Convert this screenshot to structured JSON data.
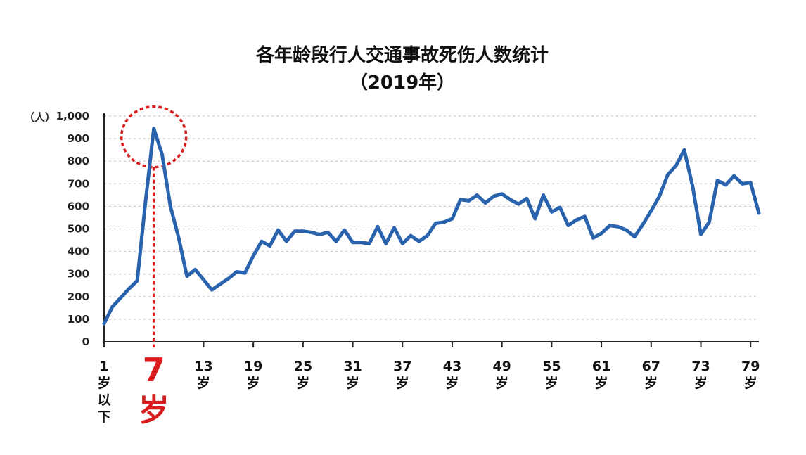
{
  "chart_data": {
    "type": "line",
    "title": "各年龄段行人交通事故死伤人数统计",
    "subtitle": "（2019年）",
    "ylabel": "（人）",
    "ylim": [
      0,
      1000
    ],
    "y_ticks": [
      0,
      100,
      200,
      300,
      400,
      500,
      600,
      700,
      800,
      900,
      1000
    ],
    "y_tick_labels": [
      "0",
      "100",
      "200",
      "300",
      "400",
      "500",
      "600",
      "700",
      "800",
      "900",
      "1,000"
    ],
    "x_ticks": [
      1,
      13,
      19,
      25,
      31,
      37,
      43,
      49,
      55,
      61,
      67,
      73,
      79
    ],
    "x_tick_labels": [
      {
        "num": "1",
        "unit": "岁以下"
      },
      {
        "num": "13",
        "unit": "岁"
      },
      {
        "num": "19",
        "unit": "岁"
      },
      {
        "num": "25",
        "unit": "岁"
      },
      {
        "num": "31",
        "unit": "岁"
      },
      {
        "num": "37",
        "unit": "岁"
      },
      {
        "num": "43",
        "unit": "岁"
      },
      {
        "num": "49",
        "unit": "岁"
      },
      {
        "num": "55",
        "unit": "岁"
      },
      {
        "num": "61",
        "unit": "岁"
      },
      {
        "num": "67",
        "unit": "岁"
      },
      {
        "num": "73",
        "unit": "岁"
      },
      {
        "num": "79",
        "unit": "岁"
      }
    ],
    "grid": true,
    "highlight": {
      "age": 7,
      "num": "7",
      "unit": "岁",
      "color": "#d81e1e"
    },
    "series": [
      {
        "color": "#2a63ad",
        "x": [
          1,
          2,
          3,
          4,
          5,
          6,
          7,
          8,
          9,
          10,
          11,
          12,
          13,
          14,
          15,
          16,
          17,
          18,
          19,
          20,
          21,
          22,
          23,
          24,
          25,
          26,
          27,
          28,
          29,
          30,
          31,
          32,
          33,
          34,
          35,
          36,
          37,
          38,
          39,
          40,
          41,
          42,
          43,
          44,
          45,
          46,
          47,
          48,
          49,
          50,
          51,
          52,
          53,
          54,
          55,
          56,
          57,
          58,
          59,
          60,
          61,
          62,
          63,
          64,
          65,
          66,
          67,
          68,
          69,
          70,
          71,
          72,
          73,
          74,
          75,
          76,
          77,
          78,
          79,
          80
        ],
        "y": [
          80,
          155,
          195,
          235,
          270,
          620,
          945,
          830,
          600,
          460,
          290,
          320,
          275,
          230,
          255,
          280,
          310,
          305,
          380,
          445,
          425,
          495,
          445,
          490,
          490,
          485,
          475,
          485,
          445,
          495,
          440,
          440,
          435,
          510,
          435,
          505,
          435,
          470,
          445,
          470,
          525,
          530,
          545,
          630,
          625,
          650,
          615,
          645,
          655,
          630,
          610,
          635,
          545,
          650,
          575,
          595,
          515,
          540,
          555,
          460,
          480,
          515,
          510,
          495,
          465,
          520,
          580,
          645,
          740,
          780,
          850,
          690,
          475,
          530,
          715,
          695,
          735,
          700,
          705,
          570
        ]
      }
    ]
  }
}
